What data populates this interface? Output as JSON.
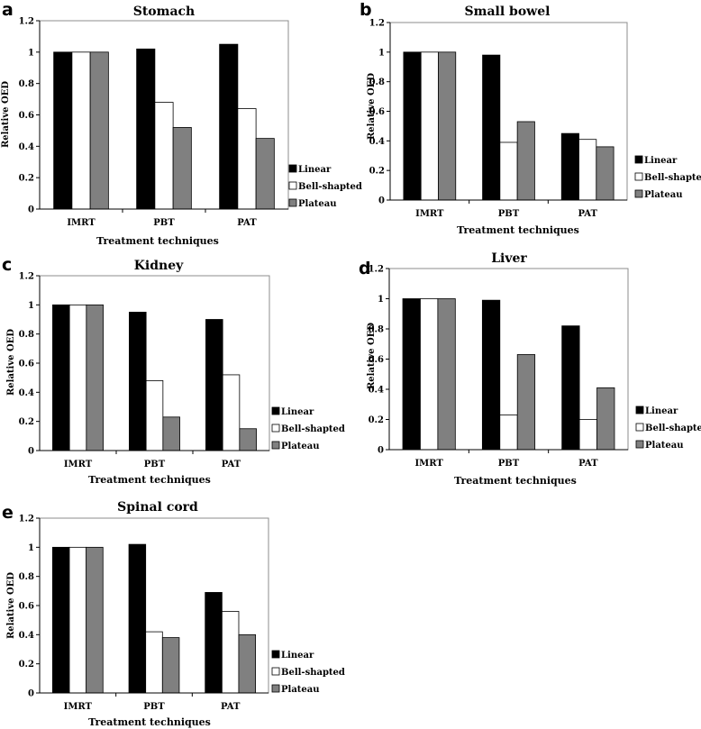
{
  "figure": {
    "series_colors": [
      "#000000",
      "#ffffff",
      "#808080"
    ],
    "panel_letters": [
      "a",
      "b",
      "c",
      "d",
      "e"
    ]
  },
  "chart_data": [
    {
      "type": "bar",
      "panel": "a",
      "title": "Stomach",
      "xlabel": "Treatment techniques",
      "ylabel": "Relative OED",
      "ylim": [
        0,
        1.2
      ],
      "yticks": [
        "0",
        "0.2",
        "0.4",
        "0.6",
        "0.8",
        "1",
        "1.2"
      ],
      "categories": [
        "IMRT",
        "PBT",
        "PAT"
      ],
      "series": [
        {
          "name": "Linear",
          "values": [
            1.0,
            1.02,
            1.05
          ]
        },
        {
          "name": "Bell-shapted",
          "values": [
            1.0,
            0.68,
            0.64
          ]
        },
        {
          "name": "Plateau",
          "values": [
            1.0,
            0.52,
            0.45
          ]
        }
      ],
      "legend": "right"
    },
    {
      "type": "bar",
      "panel": "b",
      "title": "Small bowel",
      "xlabel": "Treatment techniques",
      "ylabel": "Relative OED",
      "ylim": [
        0,
        1.2
      ],
      "yticks": [
        "0",
        "0.2",
        "0.4",
        "0.6",
        "0.8",
        "1",
        "1.2"
      ],
      "categories": [
        "IMRT",
        "PBT",
        "PAT"
      ],
      "series": [
        {
          "name": "Linear",
          "values": [
            1.0,
            0.98,
            0.45
          ]
        },
        {
          "name": "Bell-shapted",
          "values": [
            1.0,
            0.39,
            0.41
          ]
        },
        {
          "name": "Plateau",
          "values": [
            1.0,
            0.53,
            0.36
          ]
        }
      ],
      "legend": "right"
    },
    {
      "type": "bar",
      "panel": "c",
      "title": "Kidney",
      "xlabel": "Treatment techniques",
      "ylabel": "Relative OED",
      "ylim": [
        0,
        1.2
      ],
      "yticks": [
        "0",
        "0.2",
        "0.4",
        "0.6",
        "0.8",
        "1",
        "1.2"
      ],
      "categories": [
        "IMRT",
        "PBT",
        "PAT"
      ],
      "series": [
        {
          "name": "Linear",
          "values": [
            1.0,
            0.95,
            0.9
          ]
        },
        {
          "name": "Bell-shapted",
          "values": [
            1.0,
            0.48,
            0.52
          ]
        },
        {
          "name": "Plateau",
          "values": [
            1.0,
            0.23,
            0.15
          ]
        }
      ],
      "legend": "right"
    },
    {
      "type": "bar",
      "panel": "d",
      "title": "Liver",
      "xlabel": "Treatment techniques",
      "ylabel": "Relative OED",
      "ylim": [
        0,
        1.2
      ],
      "yticks": [
        "0",
        "0.2",
        "0.4",
        "0.6",
        "0.8",
        "1",
        "1.2"
      ],
      "categories": [
        "IMRT",
        "PBT",
        "PAT"
      ],
      "series": [
        {
          "name": "Linear",
          "values": [
            1.0,
            0.99,
            0.82
          ]
        },
        {
          "name": "Bell-shapted",
          "values": [
            1.0,
            0.23,
            0.2
          ]
        },
        {
          "name": "Plateau",
          "values": [
            1.0,
            0.63,
            0.41
          ]
        }
      ],
      "legend": "right"
    },
    {
      "type": "bar",
      "panel": "e",
      "title": "Spinal cord",
      "xlabel": "Treatment techniques",
      "ylabel": "Relative OED",
      "ylim": [
        0,
        1.2
      ],
      "yticks": [
        "0",
        "0.2",
        "0.4",
        "0.6",
        "0.8",
        "1",
        "1.2"
      ],
      "categories": [
        "IMRT",
        "PBT",
        "PAT"
      ],
      "series": [
        {
          "name": "Linear",
          "values": [
            1.0,
            1.02,
            0.69
          ]
        },
        {
          "name": "Bell-shapted",
          "values": [
            1.0,
            0.42,
            0.56
          ]
        },
        {
          "name": "Plateau",
          "values": [
            1.0,
            0.38,
            0.4
          ]
        }
      ],
      "legend": "right"
    }
  ]
}
